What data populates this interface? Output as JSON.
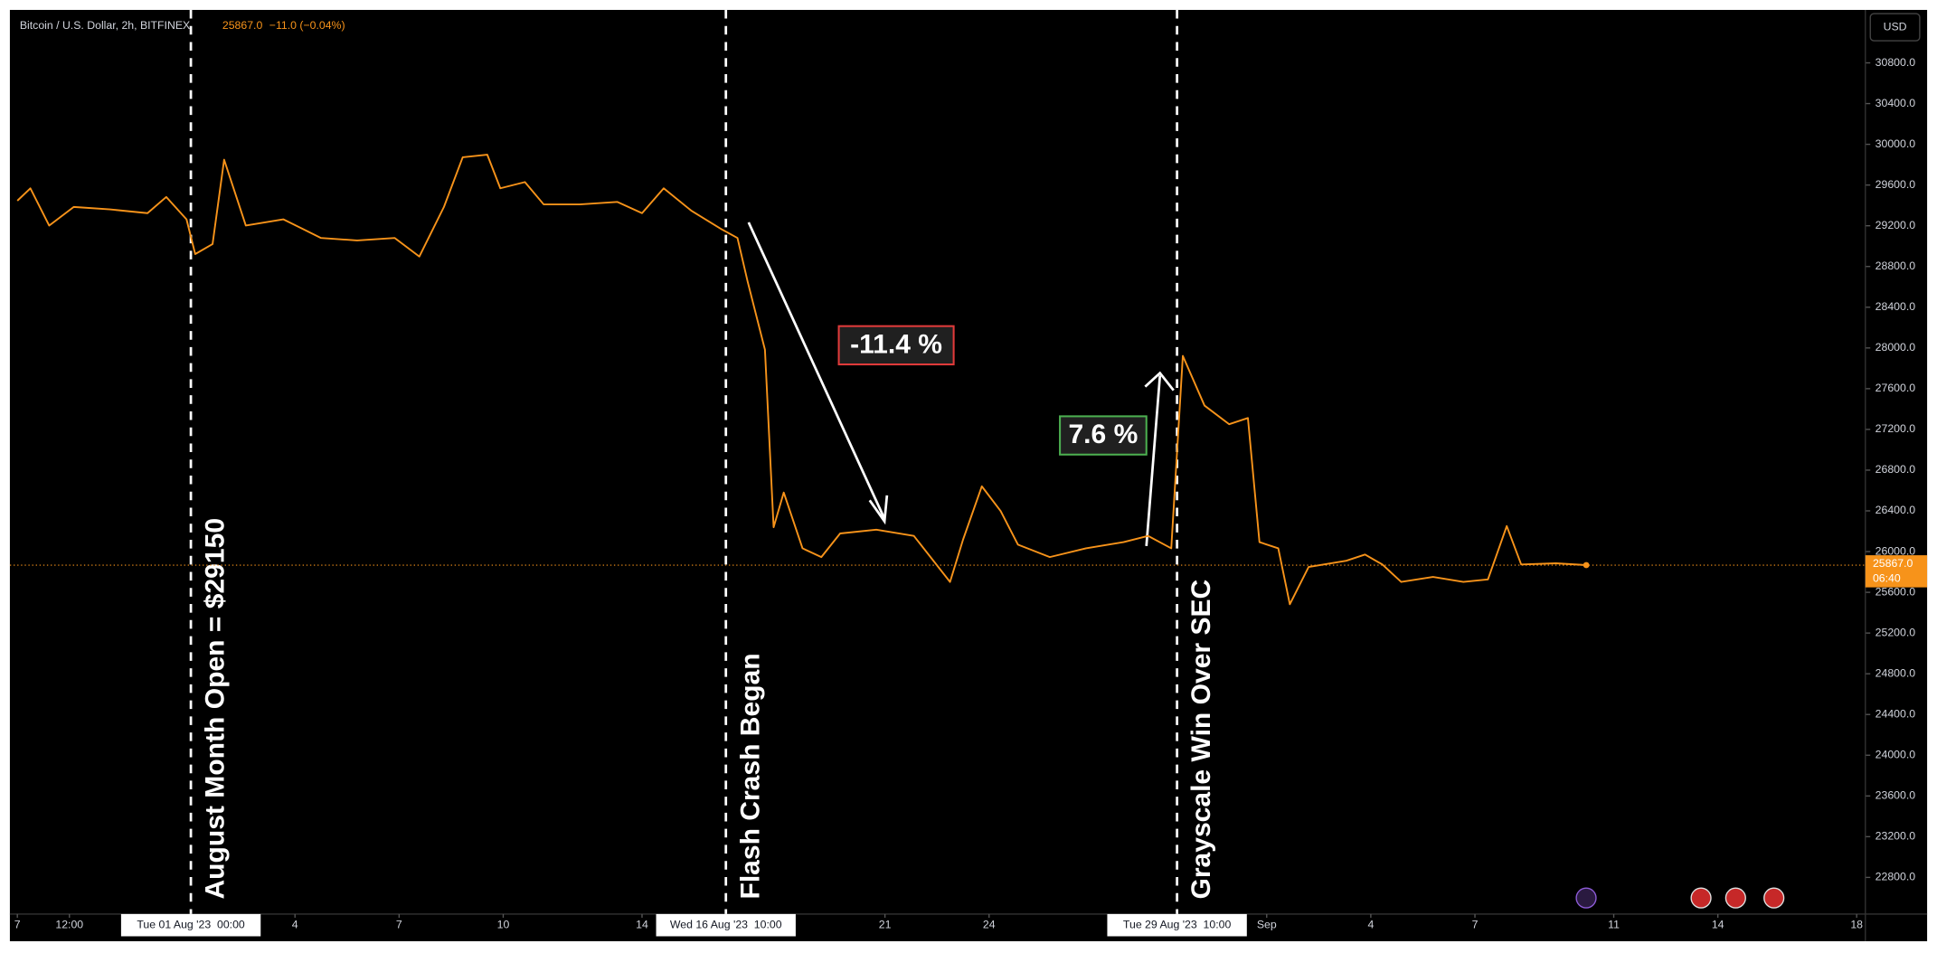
{
  "chart_data": {
    "type": "line",
    "title": "Bitcoin / U.S. Dollar, 2h, BITFINEX",
    "last": {
      "value": 25867,
      "label": "25867.0",
      "countdown": "06:40"
    },
    "change_label": "−11.0 (−0.04%)",
    "currency": "USD",
    "xlim": [
      "2023-07-26T12:00",
      "2023-09-18T06:00"
    ],
    "ylim": [
      22440,
      31320
    ],
    "yticks": [
      {
        "value": 22800,
        "label": "22800.0"
      },
      {
        "value": 23200,
        "label": "23200.0"
      },
      {
        "value": 23600,
        "label": "23600.0"
      },
      {
        "value": 24000,
        "label": "24000.0"
      },
      {
        "value": 24400,
        "label": "24400.0"
      },
      {
        "value": 24800,
        "label": "24800.0"
      },
      {
        "value": 25200,
        "label": "25200.0"
      },
      {
        "value": 25600,
        "label": "25600.0"
      },
      {
        "value": 26000,
        "label": "26000.0"
      },
      {
        "value": 26400,
        "label": "26400.0"
      },
      {
        "value": 26800,
        "label": "26800.0"
      },
      {
        "value": 27200,
        "label": "27200.0"
      },
      {
        "value": 27600,
        "label": "27600.0"
      },
      {
        "value": 28000,
        "label": "28000.0"
      },
      {
        "value": 28400,
        "label": "28400.0"
      },
      {
        "value": 28800,
        "label": "28800.0"
      },
      {
        "value": 29200,
        "label": "29200.0"
      },
      {
        "value": 29600,
        "label": "29600.0"
      },
      {
        "value": 30000,
        "label": "30000.0"
      },
      {
        "value": 30400,
        "label": "30400.0"
      },
      {
        "value": 30800,
        "label": "30800.0"
      }
    ],
    "xticks": [
      {
        "value": "2023-07-27T00:00",
        "label": "7"
      },
      {
        "value": "2023-07-28T12:00",
        "label": "12:00"
      },
      {
        "value": "2023-08-04T00:00",
        "label": "4"
      },
      {
        "value": "2023-08-07T00:00",
        "label": "7"
      },
      {
        "value": "2023-08-10T00:00",
        "label": "10"
      },
      {
        "value": "2023-08-14T00:00",
        "label": "14"
      },
      {
        "value": "2023-08-21T00:00",
        "label": "21"
      },
      {
        "value": "2023-08-24T00:00",
        "label": "24"
      },
      {
        "value": "2023-09-01T00:00",
        "label": "Sep"
      },
      {
        "value": "2023-09-04T00:00",
        "label": "4"
      },
      {
        "value": "2023-09-07T00:00",
        "label": "7"
      },
      {
        "value": "2023-09-11T00:00",
        "label": "11"
      },
      {
        "value": "2023-09-14T00:00",
        "label": "14"
      },
      {
        "value": "2023-09-18T00:00",
        "label": "18"
      }
    ],
    "markers": [
      {
        "x": "2023-08-01T00:00",
        "label": "Tue 01 Aug '23  00:00",
        "annotation": "August Month Open = $29150"
      },
      {
        "x": "2023-08-16T10:00",
        "label": "Wed 16 Aug '23  10:00",
        "annotation": "Flash Crash Began"
      },
      {
        "x": "2023-08-29T10:00",
        "label": "Tue 29 Aug '23  10:00",
        "annotation": "Grayscale Win Over SEC"
      }
    ],
    "moves": [
      "-11.4 %",
      "7.6 %"
    ],
    "series": [
      {
        "name": "Bitcoin / U.S. Dollar",
        "color": "#f7931a",
        "x": [
          "2023-07-27T00:00",
          "2023-07-27T09:00",
          "2023-07-27T22:00",
          "2023-07-28T15:00",
          "2023-07-29T16:00",
          "2023-07-30T18:00",
          "2023-07-31T07:00",
          "2023-07-31T21:00",
          "2023-08-01T03:00",
          "2023-08-01T15:00",
          "2023-08-01T23:00",
          "2023-08-02T14:00",
          "2023-08-03T16:00",
          "2023-08-04T18:00",
          "2023-08-05T19:00",
          "2023-08-06T21:00",
          "2023-08-07T14:00",
          "2023-08-08T07:00",
          "2023-08-08T20:00",
          "2023-08-09T13:00",
          "2023-08-09T22:00",
          "2023-08-10T15:00",
          "2023-08-11T04:00",
          "2023-08-12T05:00",
          "2023-08-13T07:00",
          "2023-08-14T00:00",
          "2023-08-14T15:00",
          "2023-08-15T10:00",
          "2023-08-16T07:00",
          "2023-08-16T18:00",
          "2023-08-17T01:00",
          "2023-08-17T13:00",
          "2023-08-17T19:00",
          "2023-08-18T02:00",
          "2023-08-18T15:00",
          "2023-08-19T04:00",
          "2023-08-19T17:00",
          "2023-08-20T18:00",
          "2023-08-21T20:00",
          "2023-08-22T21:00",
          "2023-08-23T06:00",
          "2023-08-23T19:00",
          "2023-08-24T08:00",
          "2023-08-24T20:00",
          "2023-08-25T18:00",
          "2023-08-26T19:00",
          "2023-08-27T21:00",
          "2023-08-28T14:00",
          "2023-08-29T06:00",
          "2023-08-29T14:00",
          "2023-08-30T05:00",
          "2023-08-30T22:00",
          "2023-08-31T11:00",
          "2023-08-31T19:00",
          "2023-09-01T08:00",
          "2023-09-01T16:00",
          "2023-09-02T05:00",
          "2023-09-03T07:00",
          "2023-09-03T20:00",
          "2023-09-04T08:00",
          "2023-09-04T21:00",
          "2023-09-05T19:00",
          "2023-09-06T16:00",
          "2023-09-07T09:00",
          "2023-09-07T22:00",
          "2023-09-08T08:00",
          "2023-09-09T08:00",
          "2023-09-10T05:00"
        ],
        "values": [
          29446,
          29568,
          29202,
          29385,
          29361,
          29324,
          29483,
          29263,
          28922,
          29020,
          29849,
          29202,
          29263,
          29080,
          29056,
          29080,
          28898,
          29385,
          29873,
          29898,
          29568,
          29629,
          29410,
          29410,
          29434,
          29324,
          29568,
          29349,
          29166,
          29080,
          28654,
          27983,
          26239,
          26580,
          26032,
          25946,
          26178,
          26215,
          26154,
          25702,
          26117,
          26641,
          26398,
          26068,
          25946,
          26032,
          26093,
          26154,
          26032,
          27922,
          27434,
          27251,
          27312,
          26093,
          26032,
          25483,
          25849,
          25910,
          25971,
          25873,
          25702,
          25751,
          25702,
          25727,
          26251,
          25873,
          25885,
          25867
        ]
      }
    ]
  }
}
